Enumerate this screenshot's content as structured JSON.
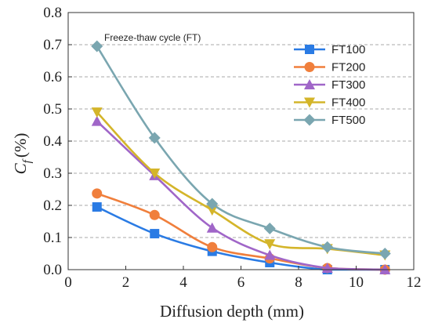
{
  "chart_data": {
    "type": "line",
    "annotation": "Freeze-thaw cycle (FT)",
    "xlabel": "Diffusion depth (mm)",
    "ylabel_main": "C",
    "ylabel_sub": "f",
    "ylabel_unit": "(%)",
    "xlim": [
      0,
      12
    ],
    "ylim": [
      0,
      0.8
    ],
    "xticks": [
      "0",
      "2",
      "4",
      "6",
      "8",
      "10",
      "12"
    ],
    "yticks": [
      "0.0",
      "0.1",
      "0.2",
      "0.3",
      "0.4",
      "0.5",
      "0.6",
      "0.7",
      "0.8"
    ],
    "grid": "horizontal dashed",
    "legend_position": "top-right",
    "x": [
      1,
      3,
      5,
      7,
      9,
      11
    ],
    "series": [
      {
        "name": "FT100",
        "color": "#2a7be4",
        "marker": "square",
        "values": [
          0.195,
          0.112,
          0.057,
          0.022,
          0.0,
          0.0
        ]
      },
      {
        "name": "FT200",
        "color": "#f07f3c",
        "marker": "circle",
        "values": [
          0.237,
          0.17,
          0.07,
          0.035,
          0.005,
          0.0
        ]
      },
      {
        "name": "FT300",
        "color": "#a066c8",
        "marker": "triangle-up",
        "values": [
          0.462,
          0.293,
          0.13,
          0.045,
          0.005,
          0.0
        ]
      },
      {
        "name": "FT400",
        "color": "#d4b52a",
        "marker": "triangle-down",
        "values": [
          0.49,
          0.3,
          0.185,
          0.08,
          0.065,
          0.045
        ]
      },
      {
        "name": "FT500",
        "color": "#7aa6b0",
        "marker": "diamond",
        "values": [
          0.695,
          0.41,
          0.205,
          0.128,
          0.07,
          0.05
        ]
      }
    ]
  }
}
